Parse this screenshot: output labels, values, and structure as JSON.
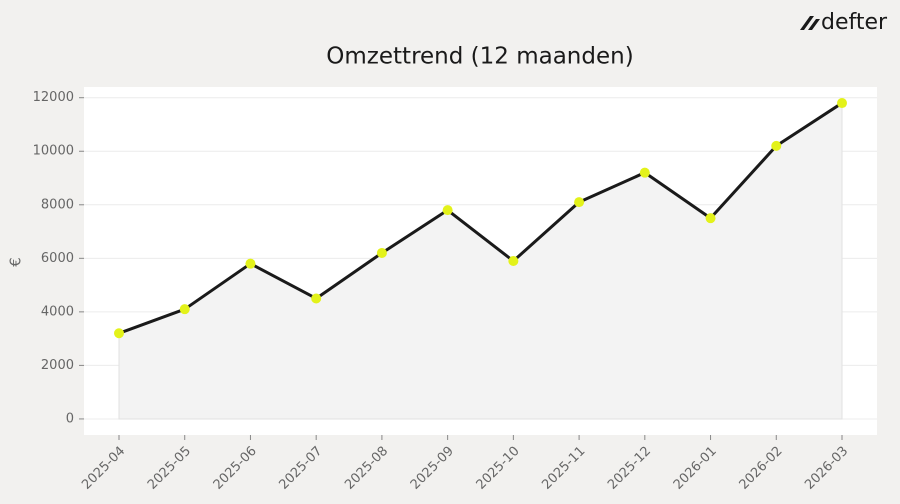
{
  "brand": "defter",
  "chart_data": {
    "type": "line",
    "title": "Omzettrend (12 maanden)",
    "y_label": "€",
    "categories": [
      "2025-04",
      "2025-05",
      "2025-06",
      "2025-07",
      "2025-08",
      "2025-09",
      "2025-10",
      "2025-11",
      "2025-12",
      "2026-01",
      "2026-02",
      "2026-03"
    ],
    "values": [
      3200,
      4100,
      5800,
      4500,
      6200,
      7800,
      5900,
      8100,
      9200,
      7500,
      10200,
      11800
    ],
    "color": "#1a1a1a",
    "marker_color": "#e3f21a",
    "area": true,
    "ylim": [
      -600,
      12400
    ],
    "yticks": [
      0,
      2000,
      4000,
      6000,
      8000,
      10000,
      12000
    ],
    "grid": true
  }
}
